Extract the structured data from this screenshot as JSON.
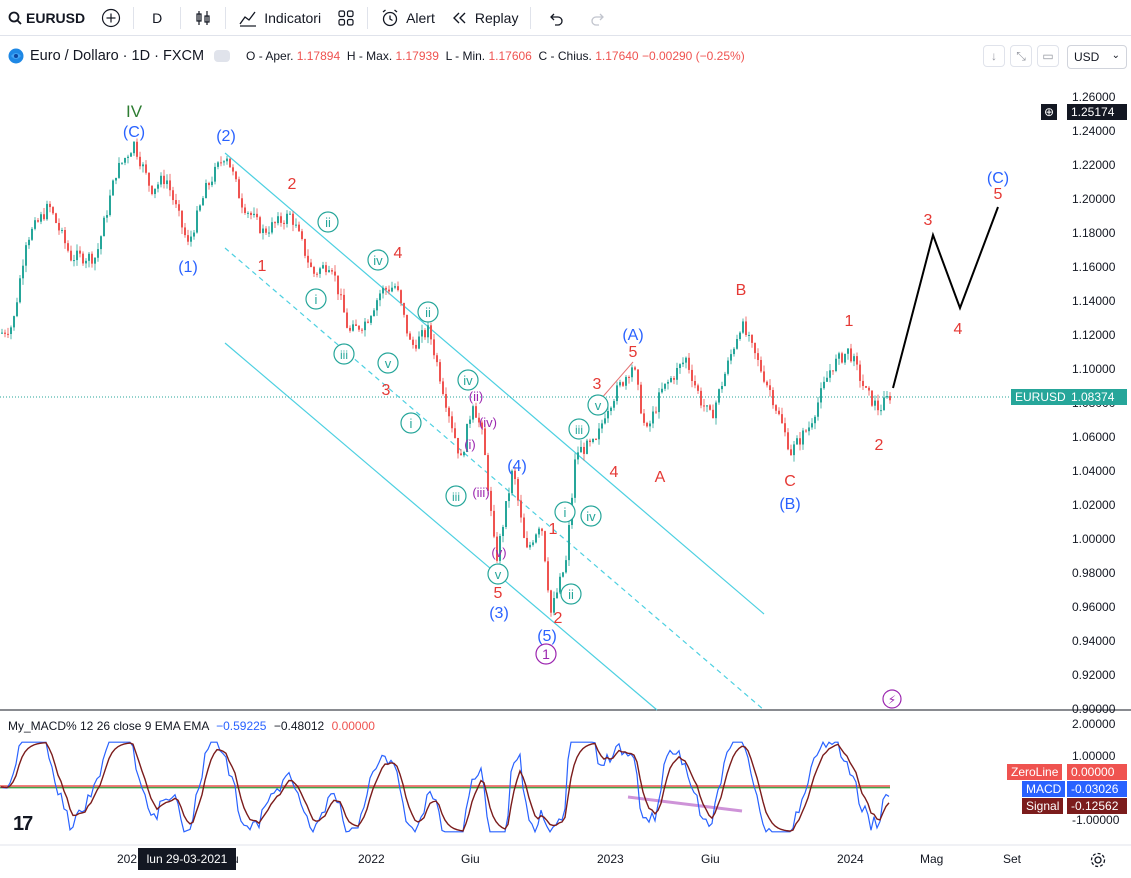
{
  "toolbar": {
    "symbol": "EURUSD",
    "interval": "D",
    "indicators_label": "Indicatori",
    "alert_label": "Alert",
    "replay_label": "Replay"
  },
  "legend": {
    "title": "Euro / Dollaro · 1D · FXCM",
    "open_label": "O - Aper.",
    "open": "1.17894",
    "high_label": "H - Max.",
    "high": "1.17939",
    "low_label": "L - Min.",
    "low": "1.17606",
    "close_label": "C - Chius.",
    "close": "1.17640",
    "change": "−0.00290 (−0.25%)"
  },
  "currency": "USD",
  "price_scale": {
    "ticks": [
      "1.26000",
      "1.24000",
      "1.22000",
      "1.20000",
      "1.18000",
      "1.16000",
      "1.14000",
      "1.12000",
      "1.10000",
      "1.08000",
      "1.06000",
      "1.04000",
      "1.02000",
      "1.00000",
      "0.98000",
      "0.96000",
      "0.94000",
      "0.92000",
      "0.90000"
    ],
    "crosshair_value": "1.25174",
    "symbol_tag": "EURUSD",
    "last_price": "1.08374"
  },
  "macd": {
    "label": "My_MACD% 12 26 close 9 EMA EMA",
    "v1": "−0.59225",
    "v2": "−0.48012",
    "v3": "0.00000",
    "ticks": [
      "2.00000",
      "1.00000",
      "-1.00000"
    ],
    "zero_tag_label": "ZeroLine",
    "zero_tag_value": "0.00000",
    "macd_tag_label": "MACD",
    "macd_tag_value": "-0.03026",
    "signal_tag_label": "Signal",
    "signal_tag_value": "-0.12562"
  },
  "time_axis": {
    "labels": [
      "202",
      "u",
      "2022",
      "Giu",
      "2023",
      "Giu",
      "2024",
      "Mag",
      "Set"
    ],
    "crosshair_date": "lun 29-03-2021"
  },
  "wave_labels": {
    "IV": "IV",
    "C": "(C)",
    "n2": "(2)",
    "n1": "(1)",
    "n3": "(3)",
    "n4": "(4)",
    "n5": "(5)",
    "A": "(A)",
    "B": "(B)",
    "r1": "1",
    "r2": "2",
    "r3": "3",
    "r4": "4",
    "r5": "5",
    "rA": "A",
    "rB": "B",
    "rC": "C",
    "i": "i",
    "ii": "ii",
    "iii": "iii",
    "iv": "iv",
    "v": "v",
    "pi": "(i)",
    "pii": "(ii)",
    "piii": "(iii)",
    "piv": "(iv)",
    "pv": "(v)",
    "one": "1"
  },
  "colors": {
    "up": "#26a69a",
    "down": "#ef5350",
    "channel": "#4dd0e1",
    "blue": "#2962ff",
    "red": "#e53935",
    "green": "#2e7d32",
    "purple": "#9c27b0",
    "teal": "#26a69a"
  }
}
